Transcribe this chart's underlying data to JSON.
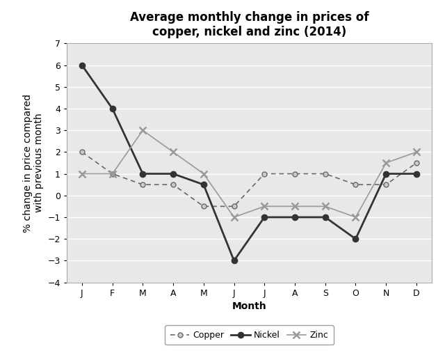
{
  "title": "Average monthly change in prices of\ncopper, nickel and zinc (2014)",
  "xlabel": "Month",
  "ylabel": "% change in price compared\nwith previous month",
  "months": [
    "J",
    "F",
    "M",
    "A",
    "M",
    "J",
    "J",
    "A",
    "S",
    "O",
    "N",
    "D"
  ],
  "copper": [
    2,
    1,
    0.5,
    0.5,
    -0.5,
    -0.5,
    1,
    1,
    1,
    0.5,
    0.5,
    1.5
  ],
  "nickel": [
    6,
    4,
    1,
    1,
    0.5,
    -3,
    -1,
    -1,
    -1,
    -2,
    1,
    1
  ],
  "zinc": [
    1,
    1,
    3,
    2,
    1,
    -1,
    -0.5,
    -0.5,
    -0.5,
    -1,
    1.5,
    2
  ],
  "ylim": [
    -4,
    7
  ],
  "yticks": [
    -4,
    -3,
    -2,
    -1,
    0,
    1,
    2,
    3,
    4,
    5,
    6,
    7
  ],
  "copper_color": "#666666",
  "nickel_color": "#333333",
  "zinc_color": "#999999",
  "plot_bg_color": "#e8e8e8",
  "grid_color": "#ffffff",
  "legend_labels": [
    "Copper",
    "Nickel",
    "Zinc"
  ],
  "title_fontsize": 12,
  "axis_label_fontsize": 10,
  "tick_fontsize": 9
}
